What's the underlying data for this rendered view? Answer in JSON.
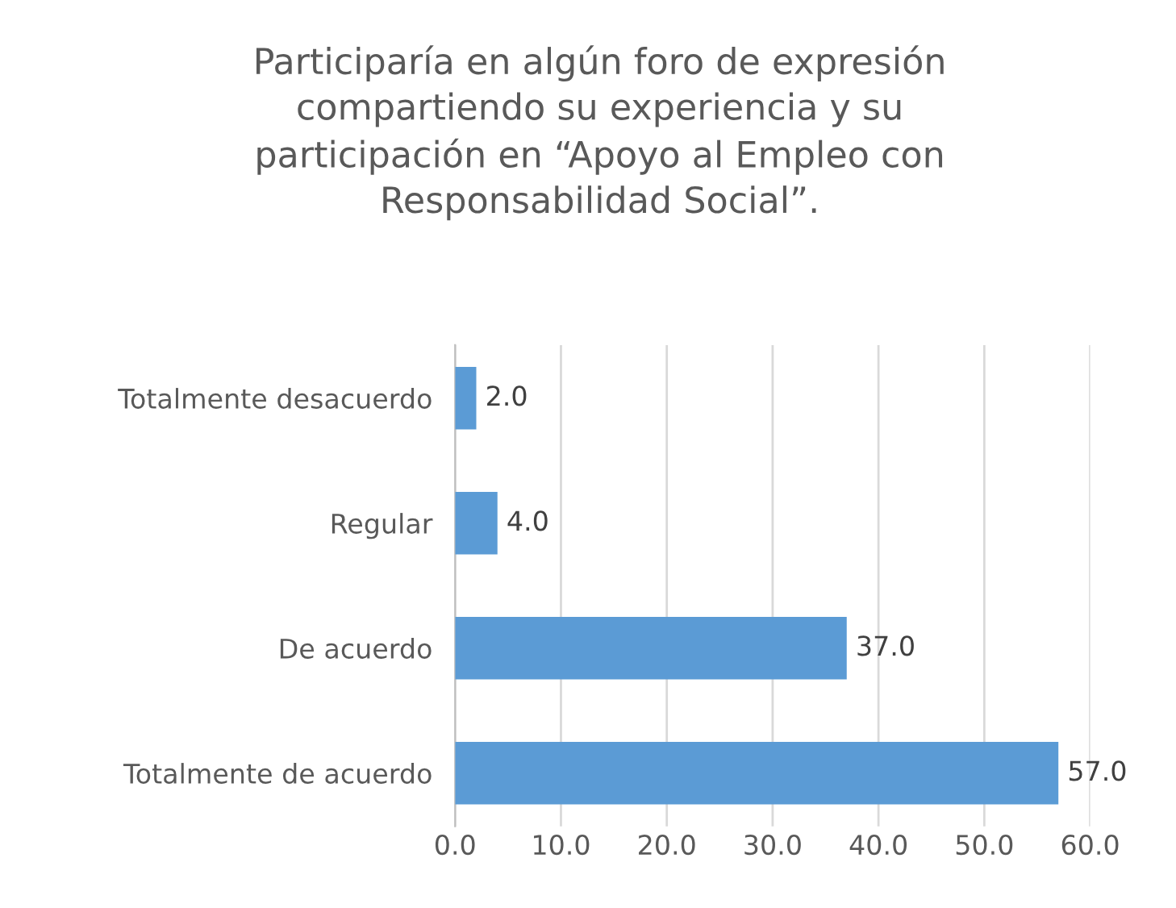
{
  "chart_data": {
    "type": "bar",
    "orientation": "horizontal",
    "title": "Participaría en algún foro de expresión compartiendo su experiencia y su participación en “Apoyo al Empleo con Responsabilidad Social”.",
    "categories": [
      "Totalmente desacuerdo",
      "Regular",
      "De acuerdo",
      "Totalmente de acuerdo"
    ],
    "values": [
      2.0,
      4.0,
      37.0,
      57.0
    ],
    "value_labels": [
      "2.0",
      "4.0",
      "37.0",
      "57.0"
    ],
    "color": "#5b9bd5",
    "xlim": [
      0,
      60
    ],
    "xticks": [
      {
        "value": 0,
        "label": "0.0"
      },
      {
        "value": 10,
        "label": "10.0"
      },
      {
        "value": 20,
        "label": "20.0"
      },
      {
        "value": 30,
        "label": "30.0"
      },
      {
        "value": 40,
        "label": "40.0"
      },
      {
        "value": 50,
        "label": "50.0"
      },
      {
        "value": 60,
        "label": "60.0"
      }
    ],
    "grid": "x",
    "legend": false
  }
}
